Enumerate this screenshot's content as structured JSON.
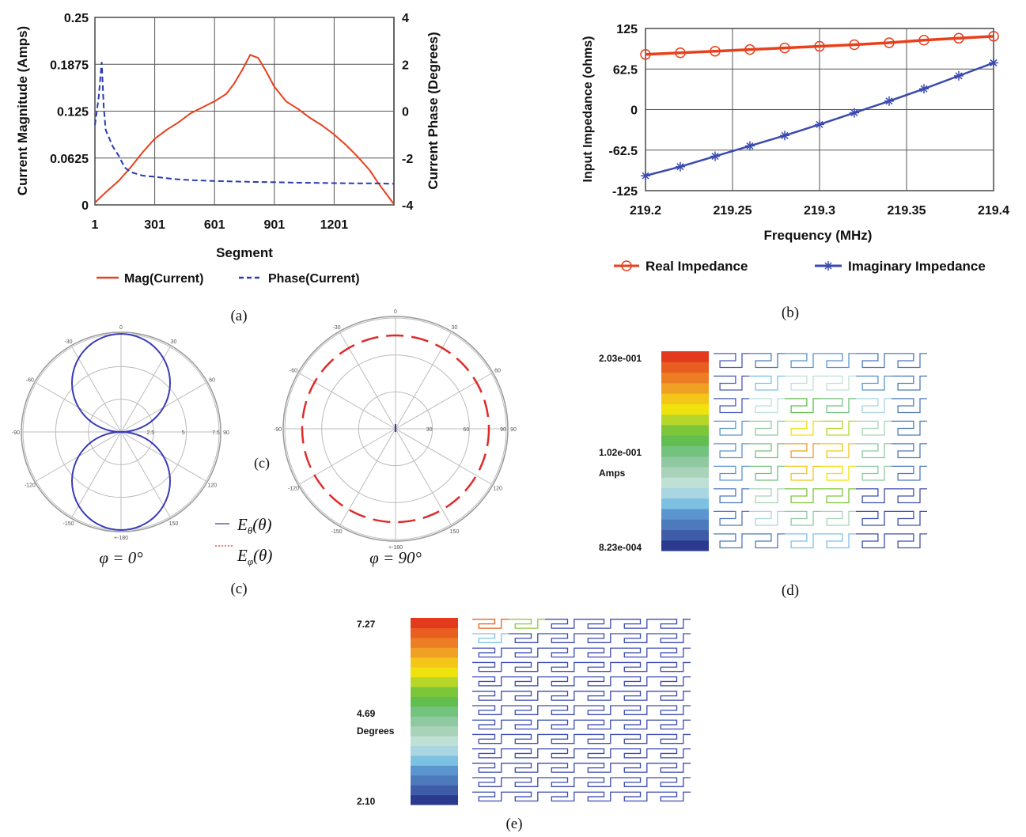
{
  "captions": {
    "a": "(a)",
    "b": "(b)",
    "c_mid": "(c)",
    "c": "(c)",
    "d": "(d)",
    "e": "(e)"
  },
  "colors": {
    "mag": "#e8401c",
    "phase": "#2a3bb0",
    "real": "#e8401c",
    "imag": "#3b4ab0",
    "eth": "#3a3ab8",
    "eph": "#e02a2a"
  },
  "chart_data": [
    {
      "id": "a",
      "type": "line",
      "xlabel": "Segment",
      "ylabel": "Current Magnitude (Amps)",
      "y2label": "Current Phase (Degrees)",
      "xticks": [
        "1",
        "301",
        "601",
        "901",
        "1201"
      ],
      "xtick_values": [
        1,
        301,
        601,
        901,
        1201
      ],
      "xlim": [
        1,
        1501
      ],
      "yticks": [
        "0",
        "0.0625",
        "0.125",
        "0.1875",
        "0.25"
      ],
      "ytick_values": [
        0,
        0.0625,
        0.125,
        0.1875,
        0.25
      ],
      "ylim": [
        0,
        0.25
      ],
      "y2ticks": [
        "-4",
        "-2",
        "0",
        "2",
        "4"
      ],
      "y2tick_values": [
        -4,
        -2,
        0,
        2,
        4
      ],
      "y2lim": [
        -4,
        4
      ],
      "grid": true,
      "legend_position": "bottom",
      "series": [
        {
          "name": "Mag(Current)",
          "axis": "left",
          "style": "solid",
          "x": [
            1,
            60,
            120,
            180,
            240,
            300,
            360,
            420,
            480,
            540,
            600,
            660,
            700,
            740,
            780,
            820,
            860,
            900,
            960,
            1020,
            1080,
            1140,
            1200,
            1260,
            1320,
            1380,
            1420,
            1470,
            1501
          ],
          "y": [
            0.003,
            0.018,
            0.032,
            0.05,
            0.07,
            0.088,
            0.1,
            0.11,
            0.122,
            0.13,
            0.138,
            0.148,
            0.162,
            0.18,
            0.2,
            0.196,
            0.178,
            0.158,
            0.138,
            0.128,
            0.116,
            0.106,
            0.094,
            0.08,
            0.064,
            0.046,
            0.03,
            0.012,
            0.001
          ]
        },
        {
          "name": "Phase(Current)",
          "axis": "right",
          "style": "dashed",
          "x": [
            1,
            20,
            35,
            45,
            55,
            70,
            90,
            120,
            150,
            180,
            240,
            300,
            400,
            500,
            600,
            700,
            800,
            900,
            1000,
            1100,
            1200,
            1300,
            1400,
            1501
          ],
          "y": [
            -0.6,
            0.6,
            2.1,
            0.2,
            -0.8,
            -1.1,
            -1.5,
            -1.9,
            -2.4,
            -2.6,
            -2.75,
            -2.8,
            -2.9,
            -2.95,
            -2.98,
            -3.0,
            -3.02,
            -3.03,
            -3.05,
            -3.06,
            -3.07,
            -3.08,
            -3.08,
            -3.1
          ]
        }
      ]
    },
    {
      "id": "b",
      "type": "line",
      "xlabel": "Frequency (MHz)",
      "ylabel": "Input Impedance (ohms)",
      "xticks": [
        "219.2",
        "219.25",
        "219.3",
        "219.35",
        "219.4"
      ],
      "xtick_values": [
        219.2,
        219.25,
        219.3,
        219.35,
        219.4
      ],
      "xlim": [
        219.2,
        219.4
      ],
      "yticks": [
        "-125",
        "-62.5",
        "0",
        "62.5",
        "125"
      ],
      "ytick_values": [
        -125,
        -62.5,
        0,
        62.5,
        125
      ],
      "ylim": [
        -125,
        125
      ],
      "grid": true,
      "legend_position": "bottom",
      "series": [
        {
          "name": "Real Impedance",
          "marker": "circle",
          "x": [
            219.2,
            219.22,
            219.24,
            219.26,
            219.28,
            219.3,
            219.32,
            219.34,
            219.36,
            219.38,
            219.4
          ],
          "y": [
            85,
            87.5,
            90,
            92.5,
            95,
            97.5,
            100,
            103,
            107,
            110,
            113
          ]
        },
        {
          "name": "Imaginary Impedance",
          "marker": "star",
          "x": [
            219.2,
            219.22,
            219.24,
            219.26,
            219.28,
            219.3,
            219.32,
            219.34,
            219.36,
            219.38,
            219.4
          ],
          "y": [
            -102,
            -88,
            -72,
            -56,
            -40,
            -23,
            -5,
            13,
            32,
            52,
            72
          ]
        }
      ]
    }
  ],
  "polar": {
    "left": {
      "caption": "φ = 0°",
      "angle_labels": [
        "0",
        "30",
        "60",
        "90",
        "120",
        "150",
        "+-180",
        "-150",
        "-120",
        "-90",
        "-60",
        "-30"
      ],
      "radial_labels": [
        "2.5",
        "5",
        "7.5"
      ]
    },
    "right": {
      "caption": "φ = 90°",
      "angle_labels": [
        "0",
        "30",
        "60",
        "90",
        "120",
        "150",
        "+-180",
        "-150",
        "-120",
        "-90",
        "-60",
        "-30"
      ],
      "radial_labels": [
        "30",
        "60",
        "90"
      ]
    },
    "legend": [
      {
        "label": "E_θ(θ)",
        "sub": "θ"
      },
      {
        "label": "E_φ(θ)",
        "sub": "φ"
      }
    ],
    "legend_main": "E",
    "legend_arg": "(θ)"
  },
  "colorbar_d": {
    "max": "2.03e-001",
    "mid": "1.02e-001",
    "unit": "Amps",
    "min": "8.23e-004"
  },
  "colorbar_e": {
    "max": "7.27",
    "mid": "4.69",
    "unit": "Degrees",
    "min": "2.10"
  }
}
